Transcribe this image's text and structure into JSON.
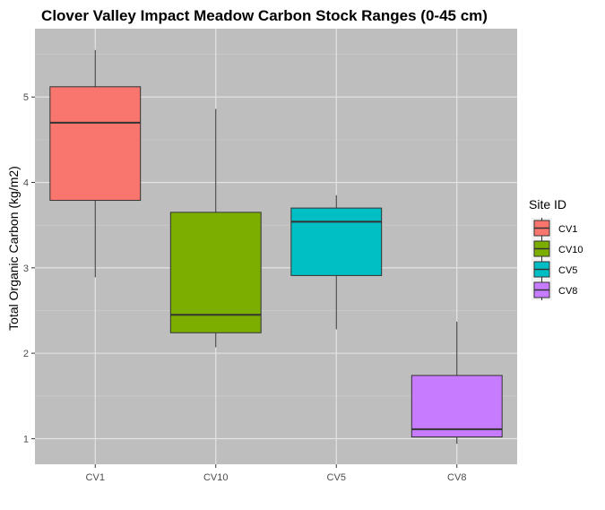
{
  "chart_data": {
    "type": "boxplot",
    "title": "Clover Valley Impact Meadow Carbon Stock Ranges (0-45 cm)",
    "xlabel": "",
    "ylabel": "Total Organic Carbon (kg/m2)",
    "ylim": [
      0.7,
      5.8
    ],
    "y_ticks": [
      1,
      2,
      3,
      4,
      5
    ],
    "categories": [
      "CV1",
      "CV10",
      "CV5",
      "CV8"
    ],
    "grid": true,
    "legend": {
      "title": "Site ID",
      "placement": "right",
      "entries": [
        "CV1",
        "CV10",
        "CV5",
        "CV8"
      ]
    },
    "boxes": [
      {
        "category": "CV1",
        "color": "#F8766D",
        "whisker_low": 2.89,
        "q1": 3.79,
        "median": 4.7,
        "q3": 5.12,
        "whisker_high": 5.55
      },
      {
        "category": "CV10",
        "color": "#7CAE00",
        "whisker_low": 2.07,
        "q1": 2.24,
        "median": 2.45,
        "q3": 3.65,
        "whisker_high": 4.86
      },
      {
        "category": "CV5",
        "color": "#00BFC4",
        "whisker_low": 2.28,
        "q1": 2.91,
        "median": 3.54,
        "q3": 3.7,
        "whisker_high": 3.85
      },
      {
        "category": "CV8",
        "color": "#C77CFF",
        "whisker_low": 0.94,
        "q1": 1.02,
        "median": 1.11,
        "q3": 1.74,
        "whisker_high": 2.37
      }
    ],
    "colors": {
      "panel_background": "#BEBEBE",
      "grid_major": "#E6E6E6",
      "grid_minor": "#CECECE",
      "axis_text": "#4D4D4D"
    }
  }
}
